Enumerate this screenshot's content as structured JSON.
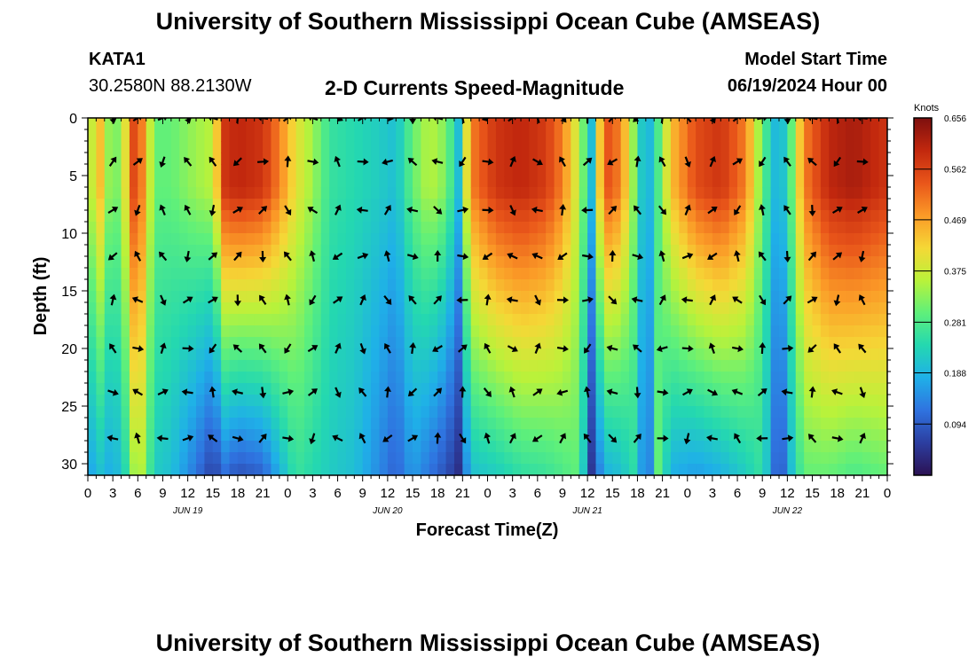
{
  "header": {
    "title": "University of Southern Mississippi Ocean Cube (AMSEAS)",
    "station": "KATA1",
    "coords": "30.2580N  88.2130W",
    "plot_title": "2-D Currents Speed-Magnitude",
    "model_start_label": "Model Start Time",
    "model_start_value": "06/19/2024 Hour 00"
  },
  "footer": {
    "title": "University of Southern Mississippi Ocean Cube (AMSEAS)"
  },
  "colors": {
    "colormap": [
      "#2b1153",
      "#2c3ea0",
      "#2f73e0",
      "#1fb0e8",
      "#24d8b0",
      "#5ff07a",
      "#b9f23a",
      "#f5d836",
      "#fb9a27",
      "#e9561a",
      "#c2280e",
      "#7e0f0e"
    ]
  },
  "chart_data": {
    "type": "heatmap",
    "title": "2-D Currents Speed-Magnitude",
    "xlabel": "Forecast Time(Z)",
    "ylabel": "Depth (ft)",
    "x_range_hours": [
      0,
      96
    ],
    "x_tick_labels": [
      "0",
      "3",
      "6",
      "9",
      "12",
      "15",
      "18",
      "21",
      "0",
      "3",
      "6",
      "9",
      "12",
      "15",
      "18",
      "21",
      "0",
      "3",
      "6",
      "9",
      "12",
      "15",
      "18",
      "21",
      "0",
      "3",
      "6",
      "9",
      "12",
      "15",
      "18",
      "21",
      "0"
    ],
    "date_labels": [
      {
        "label": "JUN 19",
        "hour": 12
      },
      {
        "label": "JUN 20",
        "hour": 36
      },
      {
        "label": "JUN 21",
        "hour": 60
      },
      {
        "label": "JUN 22",
        "hour": 84
      }
    ],
    "y_range_ft": [
      0,
      31
    ],
    "y_ticks": [
      0,
      5,
      10,
      15,
      20,
      25,
      30
    ],
    "colorbar": {
      "label": "Knots",
      "range": [
        0,
        0.656
      ],
      "tick_values": [
        0.094,
        0.188,
        0.281,
        0.375,
        0.469,
        0.562,
        0.656
      ],
      "tick_labels": [
        "0.094",
        "0.188",
        "0.281",
        "0.375",
        "0.469",
        "0.562",
        "0.656"
      ]
    },
    "arrow_depths_ft": [
      0,
      3.8,
      8,
      12,
      15.8,
      20,
      23.8,
      27.8
    ],
    "arrow_hours": [
      3,
      6,
      9,
      12,
      15,
      18,
      21,
      24,
      27,
      30,
      33,
      36,
      39,
      42,
      45,
      48,
      51,
      54,
      57,
      60,
      63,
      66,
      69,
      72,
      75,
      78,
      81,
      84,
      87,
      90,
      93
    ],
    "speed_profile_knots": [
      {
        "hour": 0,
        "surface": 0.34,
        "bottom": 0.16
      },
      {
        "hour": 1.5,
        "surface": 0.44,
        "bottom": 0.2
      },
      {
        "hour": 3,
        "surface": 0.28,
        "bottom": 0.17
      },
      {
        "hour": 4.5,
        "surface": 0.4,
        "bottom": 0.24
      },
      {
        "hour": 5.5,
        "surface": 0.55,
        "bottom": 0.34
      },
      {
        "hour": 6.5,
        "surface": 0.5,
        "bottom": 0.35
      },
      {
        "hour": 8,
        "surface": 0.3,
        "bottom": 0.22
      },
      {
        "hour": 10,
        "surface": 0.3,
        "bottom": 0.2
      },
      {
        "hour": 13,
        "surface": 0.34,
        "bottom": 0.12
      },
      {
        "hour": 15,
        "surface": 0.36,
        "bottom": 0.06
      },
      {
        "hour": 16.5,
        "surface": 0.58,
        "bottom": 0.11
      },
      {
        "hour": 18,
        "surface": 0.6,
        "bottom": 0.08
      },
      {
        "hour": 21,
        "surface": 0.58,
        "bottom": 0.1
      },
      {
        "hour": 23,
        "surface": 0.5,
        "bottom": 0.18
      },
      {
        "hour": 25,
        "surface": 0.4,
        "bottom": 0.26
      },
      {
        "hour": 27,
        "surface": 0.34,
        "bottom": 0.24
      },
      {
        "hour": 29,
        "surface": 0.26,
        "bottom": 0.22
      },
      {
        "hour": 32,
        "surface": 0.24,
        "bottom": 0.2
      },
      {
        "hour": 35,
        "surface": 0.22,
        "bottom": 0.14
      },
      {
        "hour": 37,
        "surface": 0.2,
        "bottom": 0.1
      },
      {
        "hour": 39,
        "surface": 0.3,
        "bottom": 0.16
      },
      {
        "hour": 41,
        "surface": 0.36,
        "bottom": 0.12
      },
      {
        "hour": 43,
        "surface": 0.32,
        "bottom": 0.08
      },
      {
        "hour": 44.5,
        "surface": 0.2,
        "bottom": 0.04
      },
      {
        "hour": 46,
        "surface": 0.5,
        "bottom": 0.2
      },
      {
        "hour": 49,
        "surface": 0.58,
        "bottom": 0.22
      },
      {
        "hour": 52,
        "surface": 0.6,
        "bottom": 0.25
      },
      {
        "hour": 55,
        "surface": 0.57,
        "bottom": 0.26
      },
      {
        "hour": 57,
        "surface": 0.5,
        "bottom": 0.28
      },
      {
        "hour": 59,
        "surface": 0.36,
        "bottom": 0.3
      },
      {
        "hour": 60.5,
        "surface": 0.2,
        "bottom": 0.05
      },
      {
        "hour": 62,
        "surface": 0.55,
        "bottom": 0.18
      },
      {
        "hour": 64,
        "surface": 0.5,
        "bottom": 0.2
      },
      {
        "hour": 66,
        "surface": 0.28,
        "bottom": 0.26
      },
      {
        "hour": 67,
        "surface": 0.15,
        "bottom": 0.06
      },
      {
        "hour": 68.5,
        "surface": 0.28,
        "bottom": 0.3
      },
      {
        "hour": 70,
        "surface": 0.44,
        "bottom": 0.18
      },
      {
        "hour": 73,
        "surface": 0.55,
        "bottom": 0.16
      },
      {
        "hour": 76,
        "surface": 0.58,
        "bottom": 0.18
      },
      {
        "hour": 79,
        "surface": 0.5,
        "bottom": 0.22
      },
      {
        "hour": 81,
        "surface": 0.3,
        "bottom": 0.26
      },
      {
        "hour": 83,
        "surface": 0.16,
        "bottom": 0.06
      },
      {
        "hour": 84.5,
        "surface": 0.3,
        "bottom": 0.2
      },
      {
        "hour": 86,
        "surface": 0.5,
        "bottom": 0.3
      },
      {
        "hour": 89,
        "surface": 0.6,
        "bottom": 0.3
      },
      {
        "hour": 92,
        "surface": 0.62,
        "bottom": 0.28
      },
      {
        "hour": 96,
        "surface": 0.58,
        "bottom": 0.3
      }
    ]
  }
}
